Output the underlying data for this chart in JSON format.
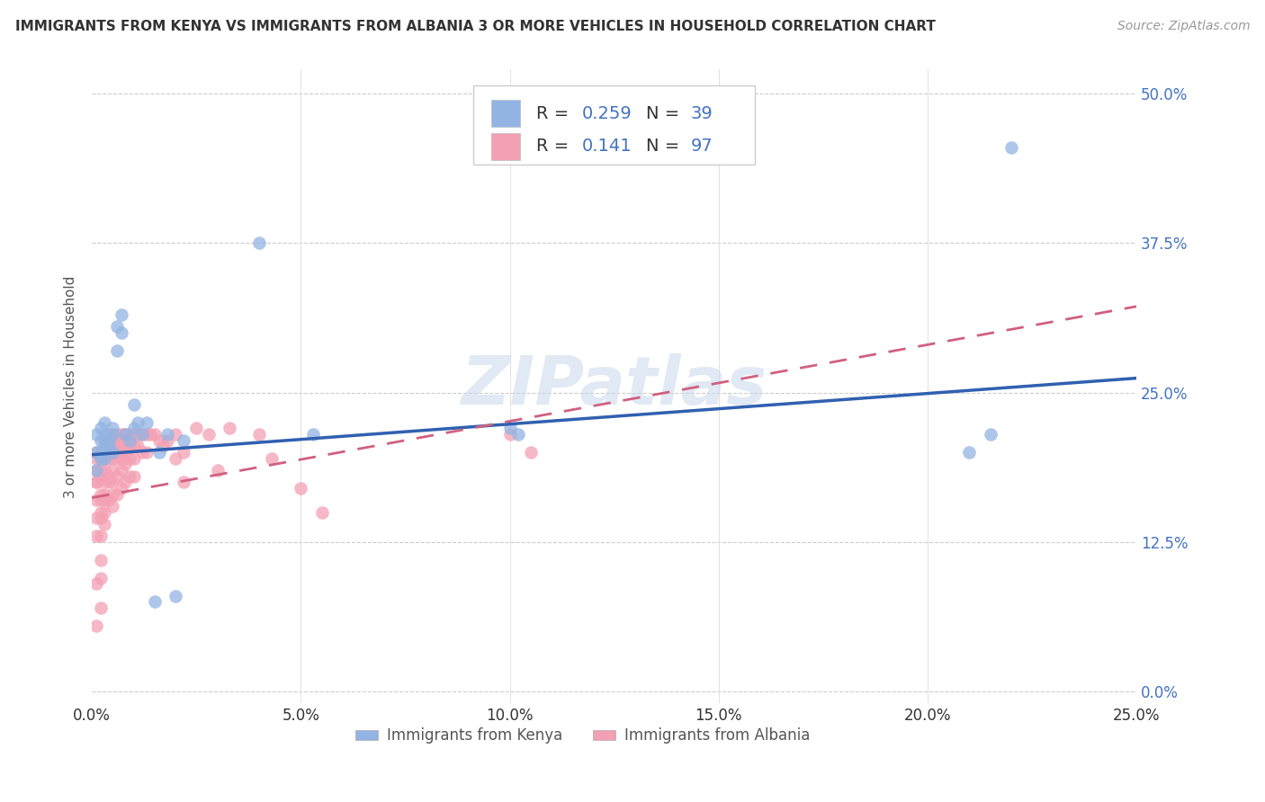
{
  "title": "IMMIGRANTS FROM KENYA VS IMMIGRANTS FROM ALBANIA 3 OR MORE VEHICLES IN HOUSEHOLD CORRELATION CHART",
  "source": "Source: ZipAtlas.com",
  "ylabel_label": "3 or more Vehicles in Household",
  "legend_label1": "Immigrants from Kenya",
  "legend_label2": "Immigrants from Albania",
  "R_kenya": 0.259,
  "N_kenya": 39,
  "R_albania": 0.141,
  "N_albania": 97,
  "color_kenya": "#92b4e3",
  "color_albania": "#f4a0b4",
  "trendline_kenya_color": "#3060b0",
  "trendline_albania_color": "#d06080",
  "background_color": "#ffffff",
  "watermark": "ZIPatlas",
  "xlim": [
    0.0,
    0.25
  ],
  "ylim": [
    -0.01,
    0.52
  ],
  "kenya_trendline": [
    0.0,
    0.25,
    0.198,
    0.262
  ],
  "albania_trendline": [
    0.0,
    0.25,
    0.162,
    0.322
  ],
  "kenya_x": [
    0.001,
    0.001,
    0.001,
    0.002,
    0.002,
    0.002,
    0.002,
    0.003,
    0.003,
    0.003,
    0.003,
    0.004,
    0.004,
    0.005,
    0.005,
    0.005,
    0.006,
    0.006,
    0.007,
    0.007,
    0.008,
    0.009,
    0.01,
    0.01,
    0.011,
    0.012,
    0.013,
    0.015,
    0.016,
    0.018,
    0.02,
    0.022,
    0.04,
    0.053,
    0.1,
    0.102,
    0.21,
    0.22,
    0.215
  ],
  "kenya_y": [
    0.2,
    0.215,
    0.185,
    0.21,
    0.2,
    0.22,
    0.195,
    0.215,
    0.205,
    0.225,
    0.195,
    0.21,
    0.205,
    0.22,
    0.2,
    0.215,
    0.285,
    0.305,
    0.3,
    0.315,
    0.215,
    0.21,
    0.24,
    0.22,
    0.225,
    0.215,
    0.225,
    0.075,
    0.2,
    0.215,
    0.08,
    0.21,
    0.375,
    0.215,
    0.22,
    0.215,
    0.2,
    0.455,
    0.215
  ],
  "albania_x": [
    0.001,
    0.001,
    0.001,
    0.001,
    0.001,
    0.001,
    0.001,
    0.001,
    0.001,
    0.001,
    0.002,
    0.002,
    0.002,
    0.002,
    0.002,
    0.002,
    0.002,
    0.002,
    0.002,
    0.002,
    0.002,
    0.002,
    0.003,
    0.003,
    0.003,
    0.003,
    0.003,
    0.003,
    0.003,
    0.003,
    0.003,
    0.003,
    0.004,
    0.004,
    0.004,
    0.004,
    0.004,
    0.004,
    0.004,
    0.005,
    0.005,
    0.005,
    0.005,
    0.005,
    0.005,
    0.005,
    0.005,
    0.006,
    0.006,
    0.006,
    0.006,
    0.006,
    0.006,
    0.007,
    0.007,
    0.007,
    0.007,
    0.007,
    0.007,
    0.008,
    0.008,
    0.008,
    0.008,
    0.008,
    0.009,
    0.009,
    0.009,
    0.009,
    0.01,
    0.01,
    0.01,
    0.01,
    0.011,
    0.011,
    0.012,
    0.012,
    0.013,
    0.013,
    0.014,
    0.015,
    0.016,
    0.017,
    0.018,
    0.02,
    0.02,
    0.022,
    0.022,
    0.025,
    0.028,
    0.03,
    0.033,
    0.04,
    0.043,
    0.05,
    0.055,
    0.1,
    0.105
  ],
  "albania_y": [
    0.195,
    0.175,
    0.175,
    0.185,
    0.16,
    0.2,
    0.145,
    0.13,
    0.09,
    0.055,
    0.2,
    0.195,
    0.185,
    0.18,
    0.165,
    0.16,
    0.15,
    0.145,
    0.13,
    0.11,
    0.095,
    0.07,
    0.21,
    0.205,
    0.2,
    0.195,
    0.185,
    0.175,
    0.165,
    0.16,
    0.15,
    0.14,
    0.215,
    0.21,
    0.2,
    0.195,
    0.18,
    0.175,
    0.16,
    0.215,
    0.21,
    0.205,
    0.195,
    0.185,
    0.175,
    0.165,
    0.155,
    0.215,
    0.21,
    0.2,
    0.195,
    0.18,
    0.165,
    0.215,
    0.21,
    0.2,
    0.195,
    0.185,
    0.17,
    0.215,
    0.21,
    0.2,
    0.19,
    0.175,
    0.215,
    0.205,
    0.195,
    0.18,
    0.215,
    0.205,
    0.195,
    0.18,
    0.215,
    0.205,
    0.215,
    0.2,
    0.215,
    0.2,
    0.215,
    0.215,
    0.21,
    0.205,
    0.21,
    0.215,
    0.195,
    0.2,
    0.175,
    0.22,
    0.215,
    0.185,
    0.22,
    0.215,
    0.195,
    0.17,
    0.15,
    0.215,
    0.2
  ]
}
